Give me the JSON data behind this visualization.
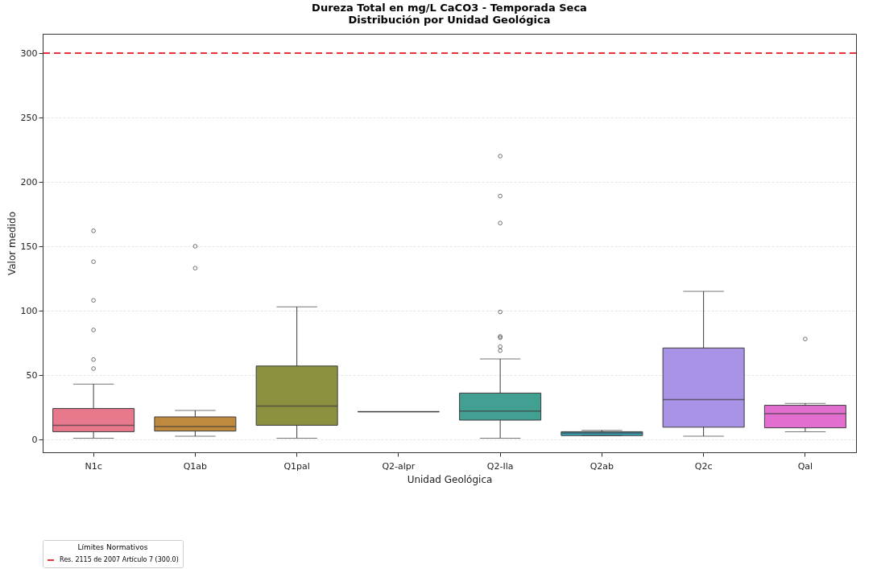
{
  "chart_data": {
    "type": "box",
    "title": "Dureza Total en mg/L CaCO3 - Temporada Seca",
    "subtitle": "Distribución por Unidad Geológica",
    "xlabel": "Unidad Geológica",
    "ylabel": "Valor medido",
    "legend_title": "Límites Normativos",
    "categories": [
      "N1c",
      "Q1ab",
      "Q1pal",
      "Q2-alpr",
      "Q2-Ila",
      "Q2ab",
      "Q2c",
      "Qal"
    ],
    "colors": [
      "#e8788c",
      "#c08a3e",
      "#8b913f",
      "#3c3c3c",
      "#42a093",
      "#3aa3b5",
      "#a993e6",
      "#e26fcf"
    ],
    "boxes": [
      {
        "low": 1,
        "q1": 6,
        "median": 11,
        "q3": 24,
        "high": 43,
        "outliers": [
          55,
          62,
          85,
          108,
          138,
          162
        ]
      },
      {
        "low": 2.5,
        "q1": 6.5,
        "median": 10,
        "q3": 17.5,
        "high": 22.5,
        "outliers": [
          133,
          150
        ]
      },
      {
        "low": 1,
        "q1": 11,
        "median": 26,
        "q3": 57,
        "high": 103
      },
      {
        "low": 21.5,
        "q1": 21.5,
        "median": 21.5,
        "q3": 21.5,
        "high": 21.5
      },
      {
        "low": 1,
        "q1": 15,
        "median": 22,
        "q3": 36,
        "high": 62.5,
        "outliers": [
          69,
          72,
          79,
          80,
          99,
          168,
          189,
          220
        ]
      },
      {
        "low": 3,
        "q1": 3,
        "median": 5,
        "q3": 6,
        "high": 7
      },
      {
        "low": 2.5,
        "q1": 9.5,
        "median": 31,
        "q3": 71,
        "high": 115
      },
      {
        "low": 6,
        "q1": 9,
        "median": 20,
        "q3": 26.5,
        "high": 28,
        "outliers": [
          78
        ]
      }
    ],
    "ylim": [
      -10,
      315
    ],
    "yticks": [
      0,
      50,
      100,
      150,
      200,
      250,
      300
    ],
    "grid": "y",
    "legend": "bottom",
    "ref_lines": [
      {
        "axis": "y",
        "value": 300,
        "label": "Res. 2115 de 2007 Artículo 7 (300.0)",
        "color": "#e8333a",
        "line_style": "dashed"
      }
    ]
  }
}
